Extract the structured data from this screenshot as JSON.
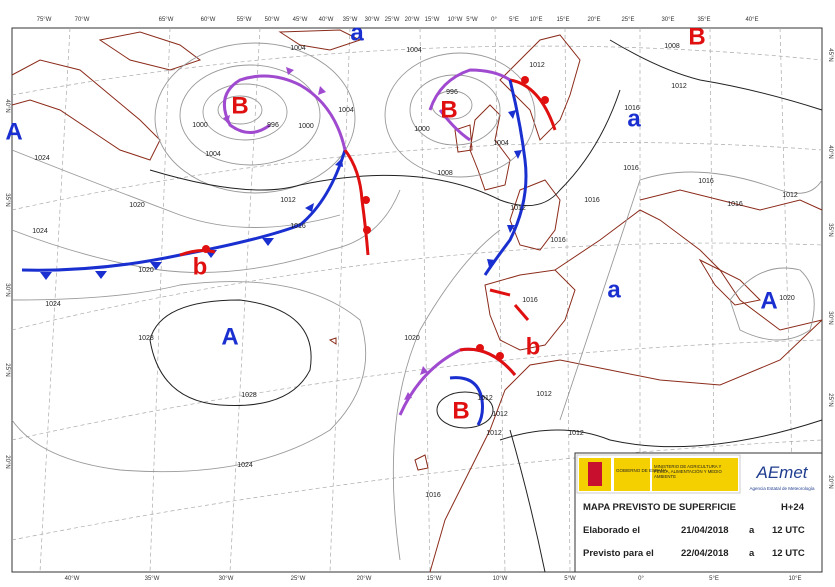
{
  "map": {
    "top_axis": [
      "75°W",
      "70°W",
      "65°W",
      "60°W",
      "55°W",
      "50°W",
      "45°W",
      "40°W",
      "35°W",
      "30°W",
      "25°W",
      "20°W",
      "15°W",
      "10°W",
      "5°W",
      "0°",
      "5°E",
      "10°E",
      "15°E",
      "20°E",
      "25°E",
      "30°E",
      "35°E",
      "40°E"
    ],
    "bottom_axis": [
      "40°W",
      "35°W",
      "30°W",
      "25°W",
      "20°W",
      "15°W",
      "10°W",
      "5°W",
      "0°",
      "5°E",
      "10°E"
    ],
    "left_axis": [
      "40°N",
      "35°N",
      "30°N",
      "25°N",
      "20°N"
    ],
    "right_axis": [
      "45°N",
      "40°N",
      "35°N",
      "30°N",
      "25°N",
      "20°N"
    ],
    "pressure_centers": [
      "B",
      "B",
      "B",
      "B",
      "b",
      "b",
      "A",
      "A",
      "A",
      "a",
      "a",
      "a"
    ],
    "isobar_labels": [
      "1004",
      "1004",
      "1012",
      "996",
      "1000",
      "996",
      "1000",
      "1004",
      "1004",
      "1008",
      "1012",
      "1016",
      "1020",
      "1024",
      "1024",
      "1020",
      "1024",
      "1028",
      "1028",
      "1020",
      "1024",
      "1016",
      "1012",
      "1012",
      "1012",
      "1012",
      "1012",
      "1016",
      "1016",
      "1016",
      "1016",
      "1016",
      "1016",
      "1016",
      "1012",
      "1020",
      "1012",
      "1008",
      "1012",
      "1004",
      "1000"
    ]
  },
  "legend": {
    "government": "GOBIERNO DE ESPAÑA",
    "ministry": "MINISTERIO DE AGRICULTURA Y PESCA, ALIMENTACIÓN Y MEDIO AMBIENTE",
    "agency_logo": "AEmet",
    "agency_name": "Agencia Estatal de Meteorología",
    "title": "MAPA PREVISTO DE SUPERFICIE",
    "lead_time": "H+24",
    "issued_label": "Elaborado el",
    "issued_date": "21/04/2018",
    "issued_at": "a",
    "issued_time": "12 UTC",
    "valid_label": "Previsto para el",
    "valid_date": "22/04/2018",
    "valid_at": "a",
    "valid_time": "12 UTC"
  }
}
